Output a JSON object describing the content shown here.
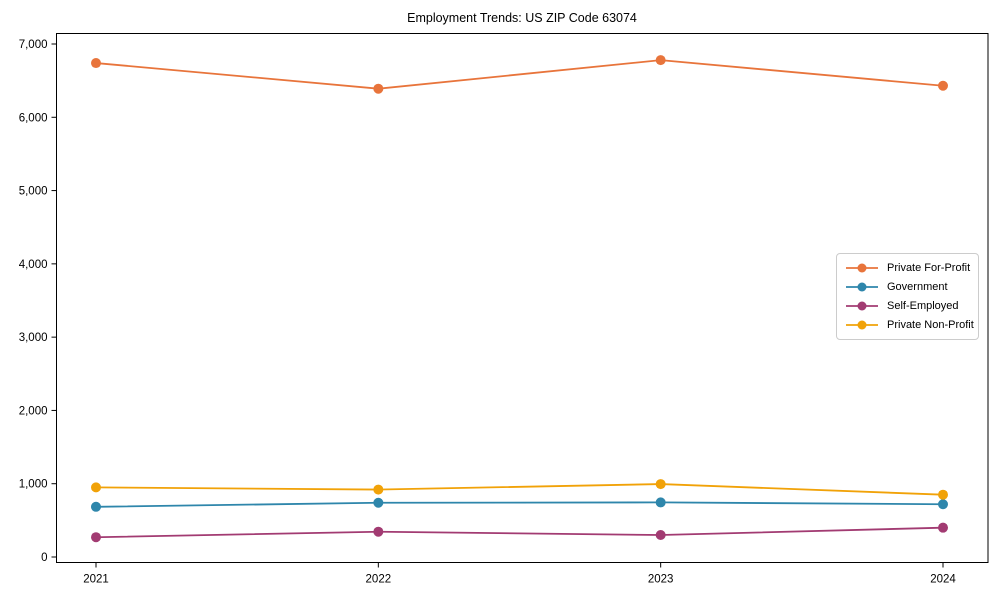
{
  "chart_title": "Employment Trends: US ZIP Code 63074",
  "chart_data": {
    "type": "line",
    "title": "Employment Trends: US ZIP Code 63074",
    "categories": [
      "2021",
      "2022",
      "2023",
      "2024"
    ],
    "series": [
      {
        "name": "Private For-Profit",
        "color": "#E8743B",
        "values": [
          6740,
          6390,
          6780,
          6430
        ]
      },
      {
        "name": "Government",
        "color": "#2E86AB",
        "values": [
          685,
          740,
          745,
          720
        ]
      },
      {
        "name": "Self-Employed",
        "color": "#A23B72",
        "values": [
          270,
          345,
          300,
          400
        ]
      },
      {
        "name": "Private Non-Profit",
        "color": "#F1A208",
        "values": [
          950,
          920,
          995,
          850
        ]
      }
    ],
    "xlabel": "",
    "ylabel": "",
    "ylim": [
      0,
      7000
    ],
    "yticks": [
      0,
      1000,
      2000,
      3000,
      4000,
      5000,
      6000,
      7000
    ],
    "ytick_labels": [
      "0",
      "1,000",
      "2,000",
      "3,000",
      "4,000",
      "5,000",
      "6,000",
      "7,000"
    ],
    "grid": false,
    "marker": "circle",
    "legend_position": "center-right"
  }
}
